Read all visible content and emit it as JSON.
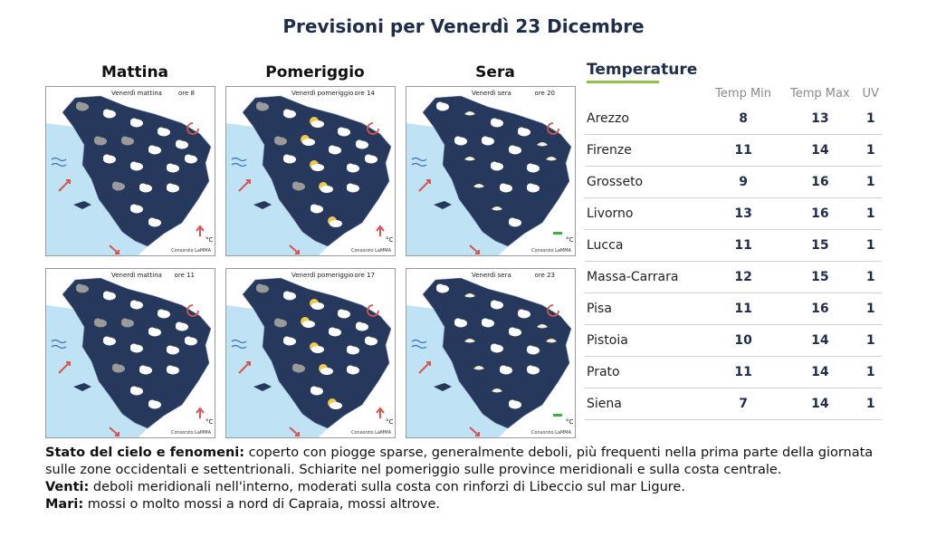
{
  "title": "Previsioni per Venerdì 23 Dicembre",
  "periods": [
    "Mattina",
    "Pomeriggio",
    "Sera"
  ],
  "maps": [
    {
      "label": "Venerdì mattina",
      "hour": "ore 8",
      "temp_trend": "up"
    },
    {
      "label": "Venerdì pomeriggio",
      "hour": "ore 14",
      "temp_trend": "up"
    },
    {
      "label": "Venerdì sera",
      "hour": "ore 20",
      "temp_trend": "stable"
    },
    {
      "label": "Venerdì mattina",
      "hour": "ore 11",
      "temp_trend": "up"
    },
    {
      "label": "Venerdì pomeriggio",
      "hour": "ore 17",
      "temp_trend": "up"
    },
    {
      "label": "Venerdì sera",
      "hour": "ore 23",
      "temp_trend": "stable"
    }
  ],
  "map_unit": "°C",
  "map_credit": "Consorzio LaMMA",
  "temperature": {
    "title": "Temperature",
    "headers": [
      "Temp Min",
      "Temp Max",
      "UV"
    ],
    "rows": [
      {
        "city": "Arezzo",
        "min": "8",
        "max": "13",
        "uv": "1"
      },
      {
        "city": "Firenze",
        "min": "11",
        "max": "14",
        "uv": "1"
      },
      {
        "city": "Grosseto",
        "min": "9",
        "max": "16",
        "uv": "1"
      },
      {
        "city": "Livorno",
        "min": "13",
        "max": "16",
        "uv": "1"
      },
      {
        "city": "Lucca",
        "min": "11",
        "max": "15",
        "uv": "1"
      },
      {
        "city": "Massa-Carrara",
        "min": "12",
        "max": "15",
        "uv": "1"
      },
      {
        "city": "Pisa",
        "min": "11",
        "max": "16",
        "uv": "1"
      },
      {
        "city": "Pistoia",
        "min": "10",
        "max": "14",
        "uv": "1"
      },
      {
        "city": "Prato",
        "min": "11",
        "max": "14",
        "uv": "1"
      },
      {
        "city": "Siena",
        "min": "7",
        "max": "14",
        "uv": "1"
      }
    ]
  },
  "description": {
    "sky_label": "Stato del cielo e fenomeni:",
    "sky_text": "coperto con piogge sparse, generalmente deboli, più frequenti nella prima parte della giornata sulle zone occidentali e settentrionali. Schiarite nel pomeriggio sulle province meridionali e sulla costa centrale.",
    "wind_label": "Venti:",
    "wind_text": "deboli meridionali nell'interno, moderati sulla costa con rinforzi di Libeccio sul mar Ligure.",
    "sea_label": "Mari:",
    "sea_text": "mossi o molto mossi a nord di Capraia, mossi altrove."
  },
  "colors": {
    "land": "#26385c",
    "sea": "#bfe3f5",
    "cloud": "#ffffff",
    "sun": "#f2c94c",
    "accent_green": "#8fc24a",
    "arrow_red": "#d9534f"
  }
}
